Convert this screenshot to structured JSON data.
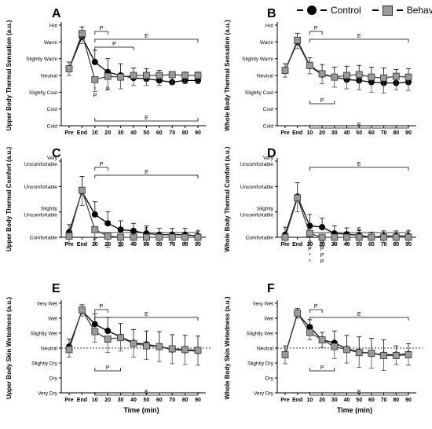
{
  "legend": {
    "control_label": "Control",
    "behave_label": "Behave"
  },
  "chart_data": [
    {
      "panel": "A",
      "type": "line",
      "ylabel": "Upper Body Thermal Sensation (a.u.)",
      "x_ticks": [
        "Pre",
        "End",
        "10",
        "20",
        "30",
        "40",
        "50",
        "60",
        "70",
        "80",
        "90"
      ],
      "y_ticks": [
        "Cold",
        "Cool",
        "Slightly Cool",
        "Neutral",
        "Slightly Warm",
        "Warm",
        "Hot"
      ],
      "ylim": [
        -3,
        3
      ],
      "series": [
        {
          "name": "Control",
          "values": [
            0.4,
            2.3,
            0.8,
            0.2,
            0.0,
            -0.15,
            -0.2,
            -0.3,
            -0.4,
            -0.3,
            -0.3
          ]
        },
        {
          "name": "Behave",
          "values": [
            0.4,
            2.5,
            -0.25,
            -0.05,
            -0.1,
            0.0,
            0.0,
            0.0,
            0.05,
            0.0,
            0.0
          ]
        }
      ],
      "errors": [
        0.4,
        0.6,
        0.7,
        0.8,
        0.7,
        0.6,
        0.6,
        0.6,
        0.6,
        0.5,
        0.5
      ],
      "annotations": {
        "upper": [
          {
            "label": "P"
          },
          {
            "label": "E"
          },
          {
            "label": "P"
          }
        ],
        "lower": [
          {
            "label": "E"
          }
        ],
        "marks": [
          "*",
          "P",
          "P"
        ]
      }
    },
    {
      "panel": "B",
      "type": "line",
      "ylabel": "Whole Body Thermal Sensation (a.u.)",
      "x_ticks": [
        "Pre",
        "End",
        "10",
        "20",
        "30",
        "40",
        "50",
        "60",
        "70",
        "80",
        "90"
      ],
      "y_ticks": [
        "Cold",
        "Cool",
        "Slightly Cool",
        "Neutral",
        "Slightly Warm",
        "Warm",
        "Hot"
      ],
      "ylim": [
        -3,
        3
      ],
      "series": [
        {
          "name": "Control",
          "values": [
            0.3,
            2.0,
            0.55,
            0.05,
            -0.1,
            -0.25,
            -0.3,
            -0.4,
            -0.45,
            -0.45,
            -0.4
          ]
        },
        {
          "name": "Behave",
          "values": [
            0.3,
            2.1,
            0.6,
            0.1,
            -0.1,
            0.0,
            0.05,
            -0.1,
            -0.15,
            -0.05,
            -0.1
          ]
        }
      ],
      "errors": [
        0.4,
        0.5,
        0.5,
        0.6,
        0.6,
        0.8,
        0.9,
        0.9,
        0.9,
        0.8,
        0.8
      ],
      "annotations": {
        "upper": [
          {
            "label": "P"
          },
          {
            "label": "E"
          }
        ],
        "lower": [
          {
            "label": "P"
          },
          {
            "label": "E"
          }
        ]
      }
    },
    {
      "panel": "C",
      "type": "line",
      "ylabel": "Upper Body Thermal Comfort (a.u.)",
      "x_ticks": [
        "Pre",
        "End",
        "10",
        "20",
        "30",
        "40",
        "50",
        "60",
        "70",
        "80",
        "90"
      ],
      "y_ticks": [
        "Comfortable",
        "Slightly Uncomfortable",
        "Uncomfortable",
        "Very Uncomfortable"
      ],
      "ylim": [
        0,
        3
      ],
      "series": [
        {
          "name": "Control",
          "values": [
            0.2,
            1.8,
            0.9,
            0.55,
            0.3,
            0.25,
            0.15,
            0.1,
            0.1,
            0.1,
            0.05
          ]
        },
        {
          "name": "Behave",
          "values": [
            0.05,
            1.85,
            0.3,
            0.05,
            0.0,
            0.0,
            0.0,
            0.0,
            0.0,
            0.0,
            0.0
          ]
        }
      ],
      "errors": [
        0.3,
        0.6,
        0.5,
        0.45,
        0.35,
        0.3,
        0.3,
        0.25,
        0.25,
        0.25,
        0.2
      ],
      "annotations": {
        "upper": [
          {
            "label": "P"
          },
          {
            "label": "E"
          }
        ],
        "lower": [
          {
            "label": "E"
          }
        ],
        "marks": [
          "P",
          "*",
          "*"
        ]
      }
    },
    {
      "panel": "D",
      "type": "line",
      "ylabel": "Whole Body Thermal Comfort (a.u.)",
      "x_ticks": [
        "Pre",
        "End",
        "10",
        "20",
        "30",
        "40",
        "50",
        "60",
        "70",
        "80",
        "90"
      ],
      "y_ticks": [
        "Comfortable",
        "Slightly Uncomfortable",
        "Uncomfortable",
        "Very Uncomfortable"
      ],
      "ylim": [
        0,
        3
      ],
      "series": [
        {
          "name": "Control",
          "values": [
            0.1,
            1.6,
            0.45,
            0.4,
            0.15,
            0.12,
            0.08,
            0.0,
            0.05,
            0.05,
            0.05
          ]
        },
        {
          "name": "Behave",
          "values": [
            0.0,
            1.55,
            0.15,
            0.0,
            0.0,
            0.0,
            0.0,
            0.0,
            0.0,
            0.0,
            0.0
          ]
        }
      ],
      "errors": [
        0.3,
        0.55,
        0.45,
        0.35,
        0.3,
        0.25,
        0.2,
        0.2,
        0.2,
        0.2,
        0.2
      ],
      "annotations": {
        "upper": [
          {
            "label": "E"
          }
        ],
        "lower": [
          {
            "label": "E"
          }
        ],
        "marks": [
          "P",
          "P",
          "P",
          "P",
          "*",
          "P",
          "*",
          "P"
        ]
      }
    },
    {
      "panel": "E",
      "type": "line",
      "ylabel": "Upper Body Skin Wetedness (a.u.)",
      "xlabel": "Time (min)",
      "x_ticks": [
        "Pre",
        "End",
        "10",
        "20",
        "30",
        "40",
        "50",
        "60",
        "70",
        "80",
        "90"
      ],
      "y_ticks": [
        "Very Dry",
        "Dry",
        "Slightly Dry",
        "Neutral",
        "Slightly Wet",
        "Wet",
        "Very Wet"
      ],
      "ylim": [
        -3,
        3
      ],
      "series": [
        {
          "name": "Control",
          "values": [
            0.1,
            2.5,
            1.6,
            1.15,
            0.75,
            0.35,
            0.25,
            0.1,
            -0.1,
            -0.15,
            -0.2
          ]
        },
        {
          "name": "Behave",
          "values": [
            -0.1,
            2.55,
            1.1,
            0.6,
            0.7,
            0.3,
            0.15,
            0.1,
            -0.05,
            -0.1,
            -0.15
          ]
        }
      ],
      "errors": [
        0.5,
        0.4,
        0.7,
        0.9,
        0.9,
        0.9,
        0.9,
        1.0,
        1.0,
        1.0,
        1.0
      ],
      "annotations": {
        "upper": [
          {
            "label": "P"
          },
          {
            "label": "E"
          }
        ],
        "lower": [
          {
            "label": "P"
          },
          {
            "label": "E"
          }
        ]
      }
    },
    {
      "panel": "F",
      "type": "line",
      "ylabel": "Whole Body Skin Wetedness (a.u.)",
      "xlabel": "Time (min)",
      "x_ticks": [
        "Pre",
        "End",
        "10",
        "20",
        "30",
        "40",
        "50",
        "60",
        "70",
        "80",
        "90"
      ],
      "y_ticks": [
        "Very Dry",
        "Dry",
        "Slightly Dry",
        "Neutral",
        "Slightly Wet",
        "Wet",
        "Very Wet"
      ],
      "ylim": [
        -3,
        3
      ],
      "series": [
        {
          "name": "Control",
          "values": [
            -0.45,
            2.3,
            1.4,
            0.55,
            0.35,
            -0.05,
            -0.25,
            -0.35,
            -0.45,
            -0.45,
            -0.4
          ]
        },
        {
          "name": "Behave",
          "values": [
            -0.45,
            2.35,
            1.05,
            0.55,
            0.1,
            -0.1,
            -0.3,
            -0.35,
            -0.5,
            -0.5,
            -0.45
          ]
        }
      ],
      "errors": [
        0.6,
        0.35,
        0.5,
        0.5,
        0.8,
        0.9,
        1.0,
        1.0,
        1.0,
        0.6,
        0.7
      ],
      "annotations": {
        "upper": [
          {
            "label": "P"
          },
          {
            "label": "E"
          }
        ],
        "lower": [
          {
            "label": "P"
          },
          {
            "label": "E"
          }
        ]
      }
    }
  ]
}
